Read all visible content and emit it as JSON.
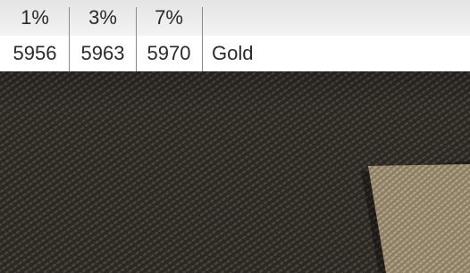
{
  "header": {
    "percentages": [
      "1%",
      "3%",
      "7%"
    ]
  },
  "codes": [
    "5956",
    "5963",
    "5970"
  ],
  "color_name": "Gold"
}
